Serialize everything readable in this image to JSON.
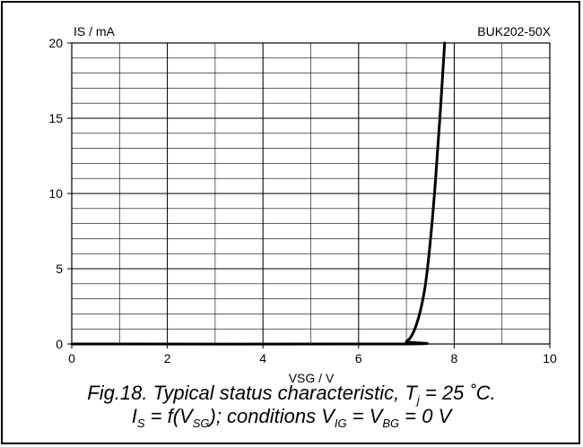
{
  "chart_data": {
    "type": "line",
    "part_number": "BUK202-50X",
    "ylabel": "IS / mA",
    "xlabel": "VSG / V",
    "xlim": [
      0,
      10
    ],
    "ylim": [
      0,
      20
    ],
    "x_ticks": [
      0,
      2,
      4,
      6,
      8,
      10
    ],
    "y_ticks": [
      0,
      5,
      10,
      15,
      20
    ],
    "x_minor_step": 1,
    "y_minor_step": 1,
    "grid": true,
    "series": [
      {
        "x": [
          0,
          6.9,
          7.0,
          7.1,
          7.2,
          7.3,
          7.4,
          7.5,
          7.6,
          7.7,
          7.8
        ],
        "y": [
          0,
          0,
          0.15,
          0.5,
          1.2,
          2.3,
          4.0,
          6.8,
          10.5,
          15.0,
          20.0
        ],
        "color": "#000000"
      }
    ]
  },
  "caption": {
    "line1_prefix": "Fig.18.   Typical status characteristic, T",
    "line1_sub": "j",
    "line1_suffix": " = 25 ˚C.",
    "line2_a": "I",
    "line2_a_sub": "S",
    "line2_b": " = f(V",
    "line2_b_sub": "SG",
    "line2_c": "); conditions V",
    "line2_c_sub": "IG",
    "line2_d": " = V",
    "line2_d_sub": "BG",
    "line2_e": " = 0 V"
  }
}
